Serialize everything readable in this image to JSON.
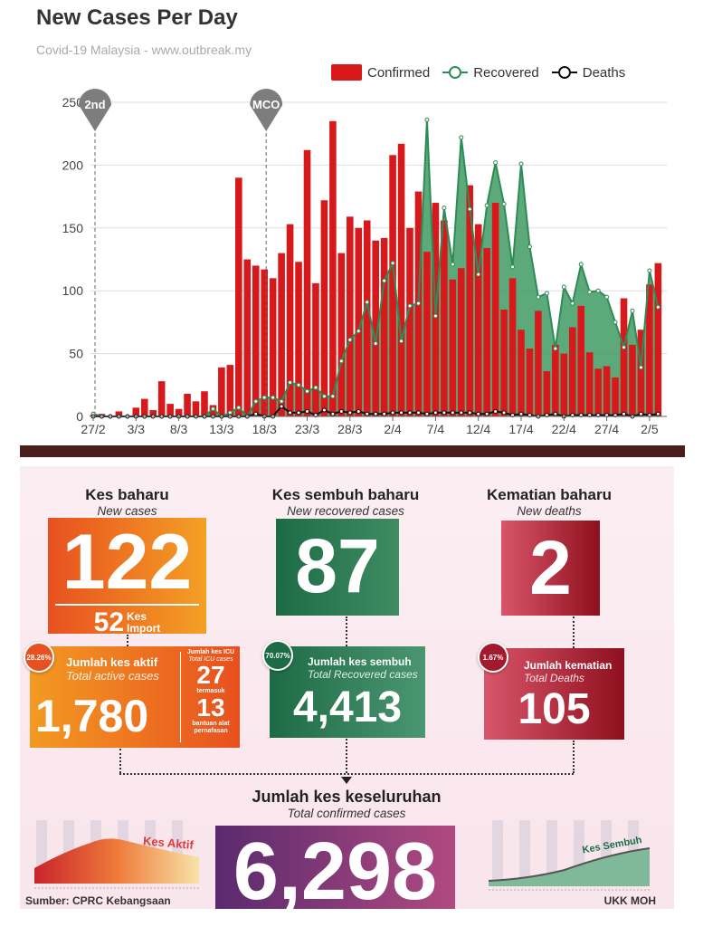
{
  "chart": {
    "title": "New Cases Per Day",
    "subtitle": "Covid-19 Malaysia - www.outbreak.my",
    "markers": [
      "2nd",
      "MCO"
    ]
  },
  "chart_data": {
    "type": "bar",
    "title": "New Cases Per Day",
    "subtitle": "Covid-19 Malaysia - www.outbreak.my",
    "xlabel": "",
    "ylabel": "",
    "ylim": [
      0,
      250
    ],
    "yticks": [
      0,
      50,
      100,
      150,
      200,
      250
    ],
    "xtick_labels": [
      "27/2",
      "3/3",
      "8/3",
      "13/3",
      "18/3",
      "23/3",
      "28/3",
      "2/4",
      "7/4",
      "12/4",
      "17/4",
      "22/4",
      "27/4",
      "2/5"
    ],
    "xtick_every": 5,
    "grid": true,
    "legend": "top-right",
    "categories": [
      "27/2",
      "28/2",
      "29/2",
      "1/3",
      "2/3",
      "3/3",
      "4/3",
      "5/3",
      "6/3",
      "7/3",
      "8/3",
      "9/3",
      "10/3",
      "11/3",
      "12/3",
      "13/3",
      "14/3",
      "15/3",
      "16/3",
      "17/3",
      "18/3",
      "19/3",
      "20/3",
      "21/3",
      "22/3",
      "23/3",
      "24/3",
      "25/3",
      "26/3",
      "27/3",
      "28/3",
      "29/3",
      "30/3",
      "31/3",
      "1/4",
      "2/4",
      "3/4",
      "4/4",
      "5/4",
      "6/4",
      "7/4",
      "8/4",
      "9/4",
      "10/4",
      "11/4",
      "12/4",
      "13/4",
      "14/4",
      "15/4",
      "16/4",
      "17/4",
      "18/4",
      "19/4",
      "20/4",
      "21/4",
      "22/4",
      "23/4",
      "24/4",
      "25/4",
      "26/4",
      "27/4",
      "28/4",
      "29/4",
      "30/4",
      "1/5",
      "2/5",
      "3/5"
    ],
    "series": [
      {
        "name": "Confirmed",
        "type": "bar",
        "color": "#d7191c",
        "values": [
          1,
          2,
          0,
          4,
          0,
          7,
          14,
          5,
          28,
          10,
          6,
          18,
          12,
          20,
          9,
          39,
          41,
          190,
          125,
          120,
          117,
          110,
          130,
          153,
          123,
          212,
          106,
          172,
          235,
          130,
          159,
          150,
          156,
          140,
          142,
          208,
          217,
          150,
          179,
          131,
          170,
          156,
          109,
          118,
          184,
          153,
          134,
          170,
          85,
          110,
          69,
          54,
          84,
          36,
          57,
          50,
          71,
          88,
          51,
          38,
          40,
          31,
          94,
          57,
          69,
          105,
          122
        ]
      },
      {
        "name": "Recovered",
        "type": "area-line",
        "color": "#2e8b57",
        "values": [
          2,
          0,
          0,
          0,
          0,
          0,
          0,
          0,
          0,
          0,
          0,
          0,
          0,
          0,
          6,
          0,
          3,
          7,
          0,
          12,
          15,
          15,
          12,
          27,
          25,
          20,
          23,
          16,
          16,
          44,
          61,
          68,
          91,
          58,
          108,
          122,
          60,
          88,
          90,
          236,
          80,
          166,
          121,
          222,
          165,
          113,
          168,
          202,
          169,
          119,
          201,
          135,
          95,
          98,
          54,
          103,
          90,
          121,
          99,
          100,
          95,
          75,
          55,
          84,
          39,
          116,
          87
        ]
      },
      {
        "name": "Deaths",
        "type": "line",
        "color": "#111111",
        "values": [
          0,
          0,
          0,
          0,
          0,
          0,
          0,
          0,
          0,
          0,
          0,
          0,
          0,
          0,
          0,
          0,
          0,
          0,
          0,
          2,
          0,
          0,
          8,
          3,
          3,
          4,
          1,
          5,
          2,
          4,
          3,
          4,
          2,
          2,
          2,
          3,
          3,
          3,
          3,
          2,
          3,
          3,
          3,
          3,
          3,
          2,
          2,
          4,
          3,
          1,
          2,
          1,
          0,
          1,
          2,
          0,
          1,
          1,
          1,
          1,
          1,
          1,
          2,
          0,
          2,
          1,
          2
        ]
      }
    ],
    "annotations": [
      {
        "label": "2nd",
        "at": "27/2"
      },
      {
        "label": "MCO",
        "at": "18/3"
      }
    ]
  },
  "info": {
    "new_cases": {
      "title": "Kes baharu",
      "subtitle": "New cases",
      "value": "122",
      "import_value": "52",
      "import_label_1": "Kes",
      "import_label_2": "Import"
    },
    "active": {
      "badge": "28.26%",
      "title": "Jumlah kes aktif",
      "subtitle": "Total active cases",
      "value": "1,780",
      "icu_title": "Jumlah kes ICU",
      "icu_subtitle": "Total ICU cases",
      "icu_value": "27",
      "icu_incl": "termasuk",
      "vent_value": "13",
      "vent_label_1": "bantuan alat",
      "vent_label_2": "pernafasan"
    },
    "new_recovered": {
      "title": "Kes sembuh baharu",
      "subtitle": "New recovered cases",
      "value": "87"
    },
    "total_recovered": {
      "badge": "70.07%",
      "title": "Jumlah kes sembuh",
      "subtitle": "Total Recovered cases",
      "value": "4,413"
    },
    "new_deaths": {
      "title": "Kematian baharu",
      "subtitle": "New deaths",
      "value": "2"
    },
    "total_deaths": {
      "badge": "1.67%",
      "title": "Jumlah kematian",
      "subtitle": "Total Deaths",
      "value": "105"
    },
    "total": {
      "title": "Jumlah kes keseluruhan",
      "subtitle": "Total confirmed cases",
      "value": "6,298"
    },
    "mini_active_label": "Kes Aktif",
    "mini_recovered_label": "Kes Sembuh",
    "source": "Sumber: CPRC Kebangsaan",
    "credit": "UKK MOH"
  }
}
